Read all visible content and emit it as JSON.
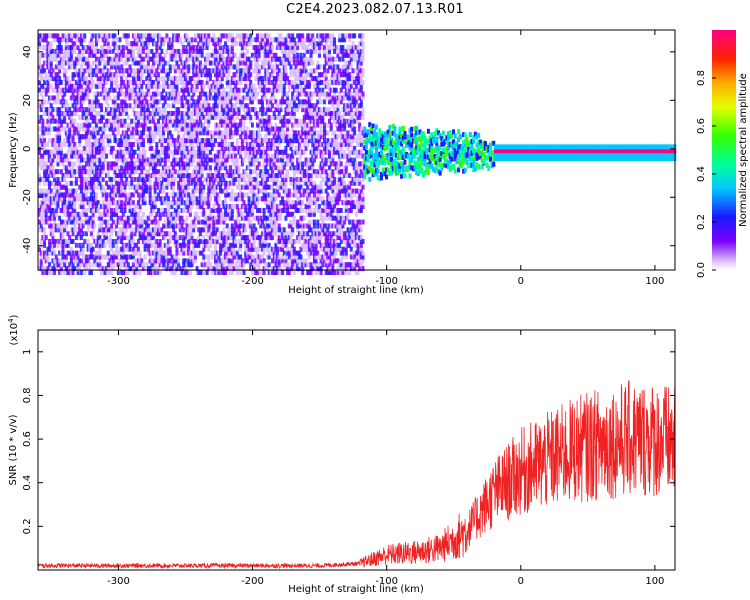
{
  "title": "C2E4.2023.082.07.13.R01",
  "chart_data": [
    {
      "type": "heatmap",
      "xlabel": "Height of straight line (km)",
      "ylabel": "Frequency (Hz)",
      "xlim": [
        -360,
        115
      ],
      "ylim": [
        -50,
        49
      ],
      "x_ticks": [
        -300,
        -200,
        -100,
        0,
        100
      ],
      "y_ticks": [
        -40,
        -20,
        0,
        20,
        40
      ],
      "colorbar": {
        "label": "Normalized spectral amplitude",
        "range": [
          0.0,
          1.0
        ],
        "ticks": [
          0.0,
          0.2,
          0.4,
          0.6,
          0.8
        ],
        "colormap": "rainbow"
      },
      "regions": [
        {
          "x": [
            -360,
            -115
          ],
          "description": "broadband noise, amplitude ~0.05-0.2",
          "freq_range": [
            -50,
            49
          ]
        },
        {
          "x": [
            -130,
            -20
          ],
          "description": "signal near 0 Hz, amplitude ~0.2-0.6",
          "freq_center": 0
        },
        {
          "x": [
            -20,
            115
          ],
          "description": "narrow line at 0 Hz, amplitude ~0.9-1.0",
          "freq_center": 0
        }
      ]
    },
    {
      "type": "line",
      "xlabel": "Height of straight line (km)",
      "ylabel": "SNR (10 * v/v)",
      "y_scale_note": "(x10^4)",
      "xlim": [
        -360,
        115
      ],
      "ylim": [
        0,
        1.1
      ],
      "x_ticks": [
        -300,
        -200,
        -100,
        0,
        100
      ],
      "y_ticks": [
        0.2,
        0.4,
        0.6,
        0.8,
        1.0
      ],
      "color": "#ee2222",
      "series": [
        {
          "x": [
            -360,
            -300,
            -250,
            -200,
            -150,
            -120,
            -100,
            -80,
            -60,
            -40,
            -20,
            0,
            20,
            40,
            60,
            80,
            100,
            115
          ],
          "y": [
            0.02,
            0.02,
            0.02,
            0.02,
            0.02,
            0.03,
            0.07,
            0.08,
            0.1,
            0.18,
            0.35,
            0.45,
            0.5,
            0.55,
            0.58,
            0.6,
            0.6,
            0.58
          ]
        }
      ]
    }
  ]
}
